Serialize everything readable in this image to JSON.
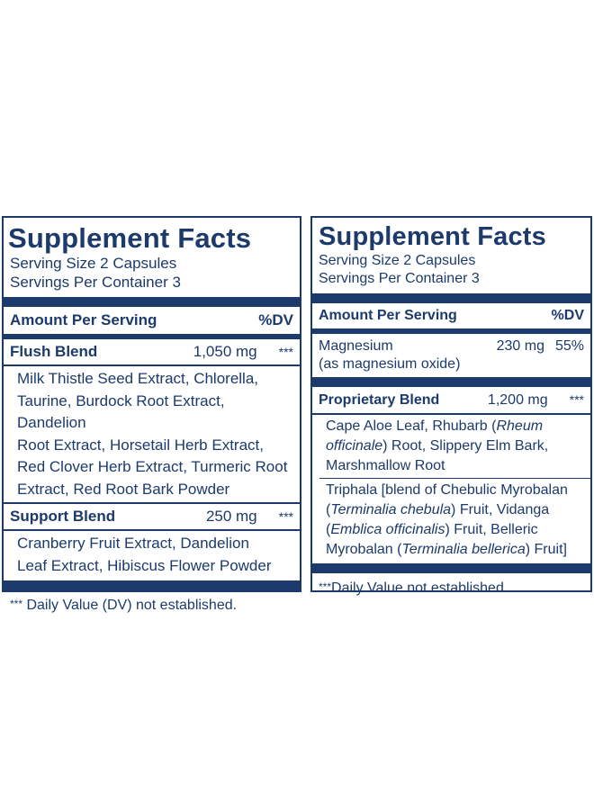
{
  "left": {
    "title": "Supplement Facts",
    "serving_size": "Serving Size 2 Capsules",
    "servings_per_container": "Servings Per Container 3",
    "amount_header": "Amount Per Serving",
    "dv_header": "%DV",
    "blends": [
      {
        "name": "Flush Blend",
        "amount": "1,050 mg",
        "dv": "***",
        "ingredients": [
          "Milk Thistle Seed Extract, Chlorella,",
          "Taurine, Burdock Root Extract, Dandelion",
          "Root Extract, Horsetail Herb Extract,",
          "Red Clover Herb Extract, Turmeric Root",
          "Extract, Red Root Bark Powder"
        ]
      },
      {
        "name": "Support Blend",
        "amount": "250 mg",
        "dv": "***",
        "ingredients": [
          "Cranberry Fruit Extract, Dandelion",
          "Leaf Extract, Hibiscus Flower Powder"
        ]
      }
    ],
    "footnote_stars": "***",
    "footnote_text": "Daily Value (DV) not established."
  },
  "right": {
    "title": "Supplement Facts",
    "serving_size": "Serving Size 2 Capsules",
    "servings_per_container": "Servings Per Container 3",
    "amount_header": "Amount Per Serving",
    "dv_header": "%DV",
    "nutrient": {
      "name_line1": "Magnesium",
      "name_line2": "(as magnesium oxide)",
      "amount": "230 mg",
      "dv": "55%"
    },
    "blend": {
      "name": "Proprietary Blend",
      "amount": "1,200 mg",
      "dv": "***"
    },
    "group1": {
      "l1a": "Cape Aloe Leaf, Rhubarb (",
      "l1b": "Rheum",
      "l2a": "officinale",
      "l2b": ") Root, Slippery Elm Bark,",
      "l3": "Marshmallow Root"
    },
    "group2": {
      "l1": "Triphala [blend of Chebulic Myrobalan",
      "l2a": "(",
      "l2b": "Terminalia chebula",
      "l2c": ") Fruit, Vidanga",
      "l3a": "(",
      "l3b": "Emblica officinalis",
      "l3c": ") Fruit, Belleric",
      "l4a": "Myrobalan (",
      "l4b": "Terminalia bellerica",
      "l4c": ") Fruit]"
    },
    "footnote_stars": "***",
    "footnote_text": "Daily Value not established."
  }
}
